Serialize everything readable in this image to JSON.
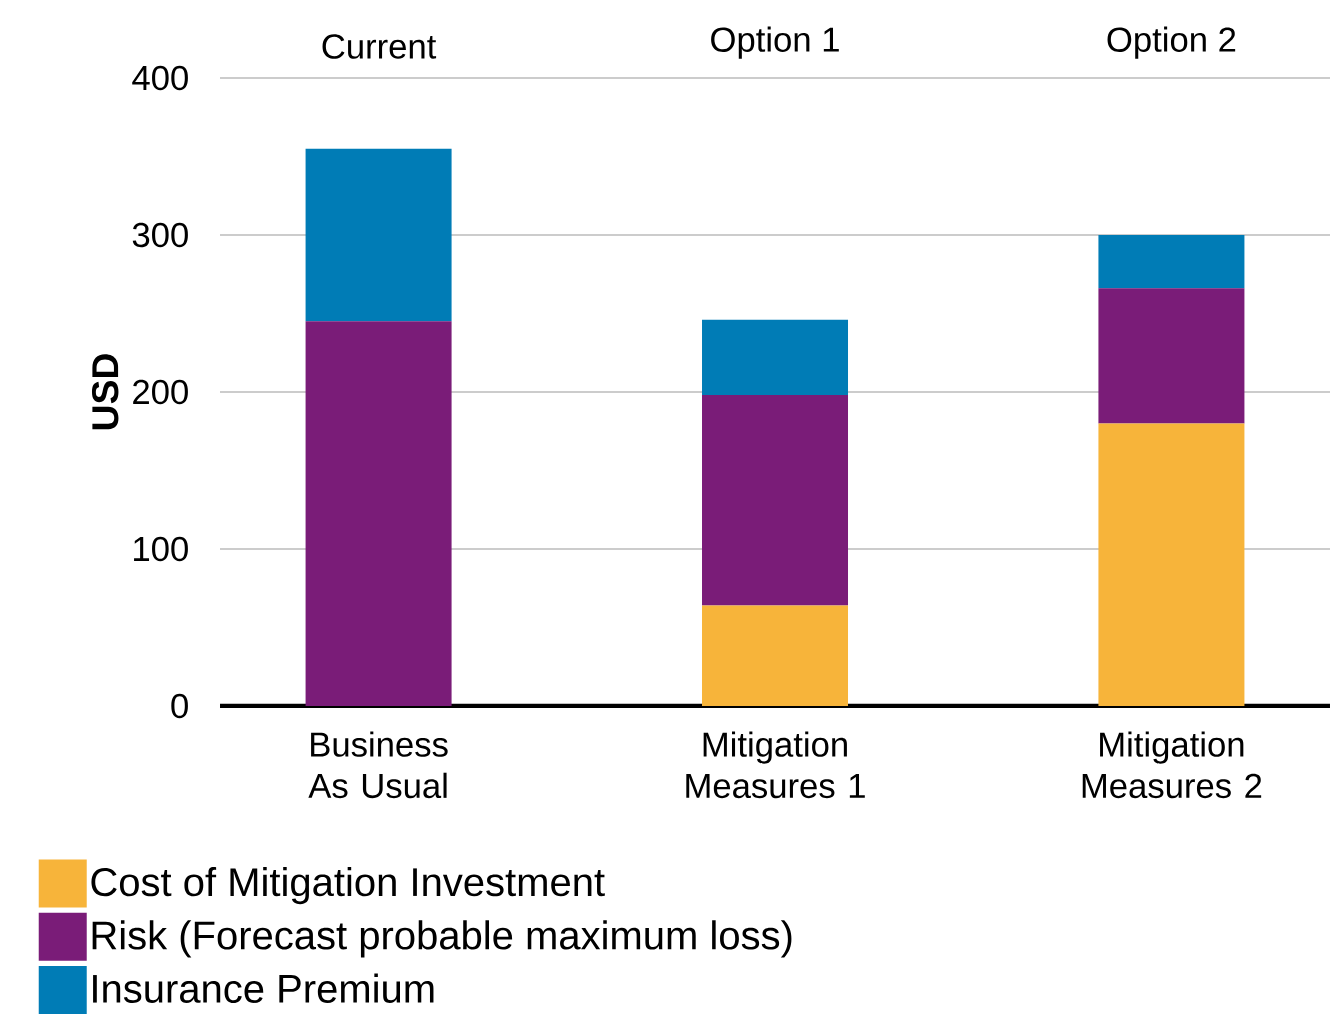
{
  "chart_data": {
    "type": "bar",
    "stacked": true,
    "ylabel": "USD",
    "categories": [
      "Business As Usual",
      "Mitigation Measures 1",
      "Mitigation Measures 2"
    ],
    "series": [
      {
        "name": "Cost of Mitigation Investment",
        "color": "#f7b43a",
        "values": [
          0,
          64,
          180
        ]
      },
      {
        "name": "Risk (Forecast probable maximum loss)",
        "color": "#7a1c78",
        "values": [
          245,
          134,
          86
        ]
      },
      {
        "name": "Insurance Premium",
        "color": "#007cb6",
        "values": [
          110,
          48,
          34
        ]
      }
    ],
    "annotations": [
      "Current",
      "Option 1",
      "Option 2"
    ],
    "ylim": [
      0,
      400
    ],
    "yticks": [
      0,
      100,
      200,
      300,
      400
    ],
    "grid": "y",
    "legend": "bottom left"
  }
}
